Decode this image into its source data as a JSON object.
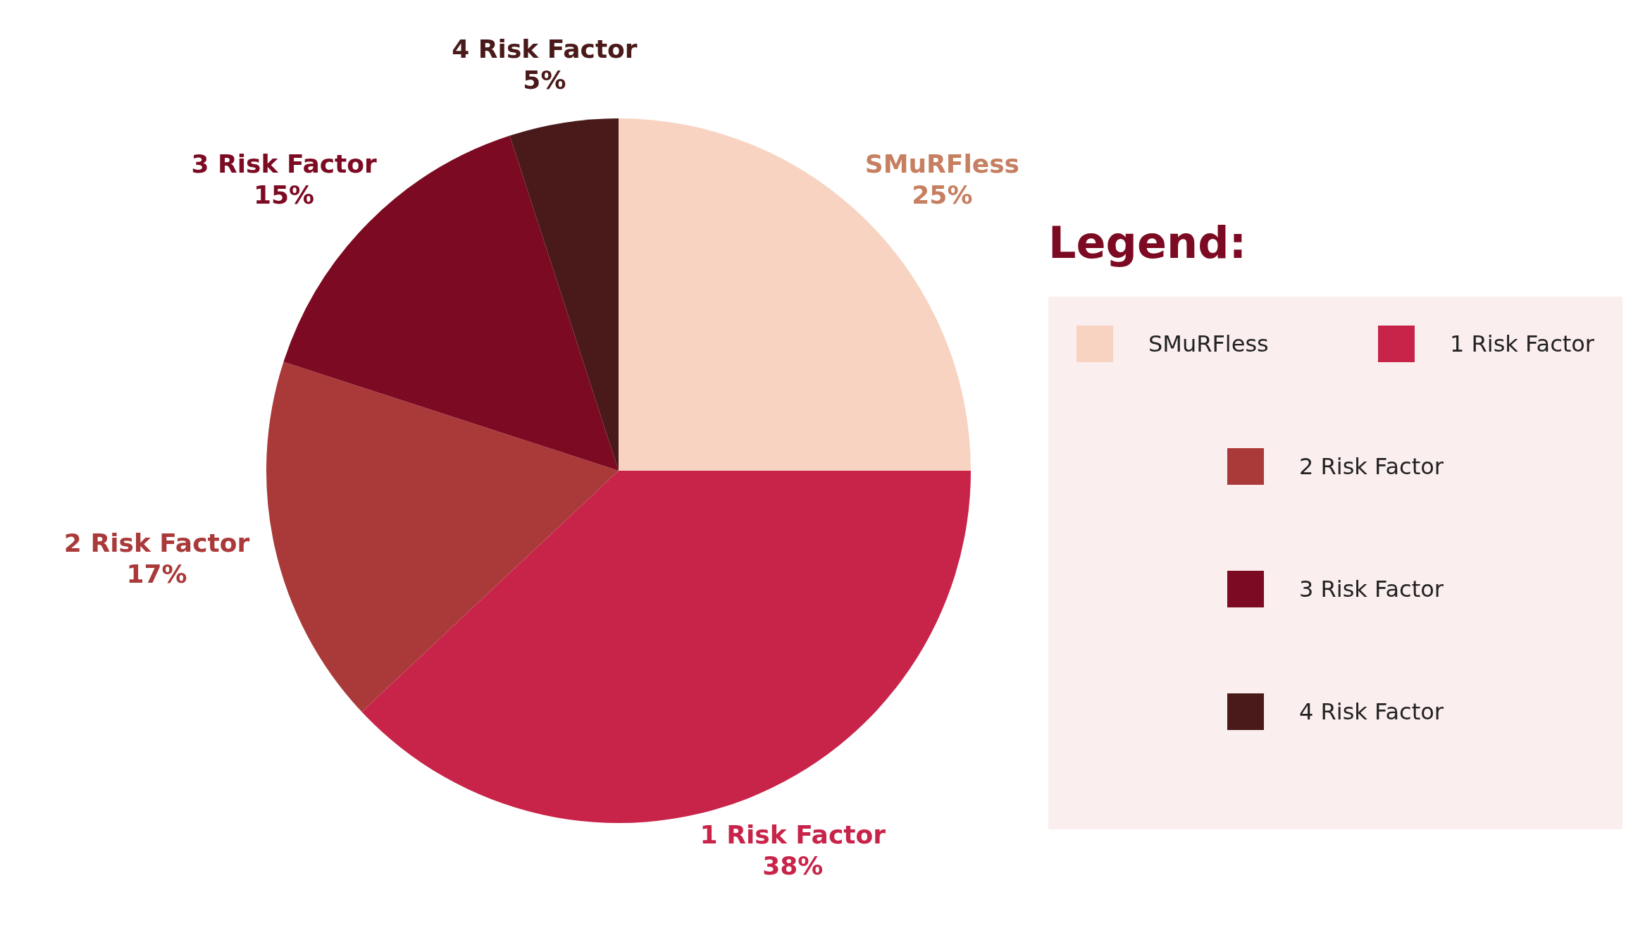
{
  "chart_data": {
    "type": "pie",
    "legend_title": "Legend:",
    "legend": "right",
    "categories": [
      "SMuRFless",
      "1 Risk Factor",
      "2 Risk Factor",
      "3 Risk Factor",
      "4 Risk Factor"
    ],
    "values": [
      25,
      38,
      17,
      15,
      5
    ],
    "value_labels": [
      "25%",
      "38%",
      "17%",
      "15%",
      "5%"
    ],
    "colors": [
      "#f8d3c2",
      "#c8244a",
      "#aa3a3a",
      "#7c0a22",
      "#4a1a1a"
    ]
  }
}
